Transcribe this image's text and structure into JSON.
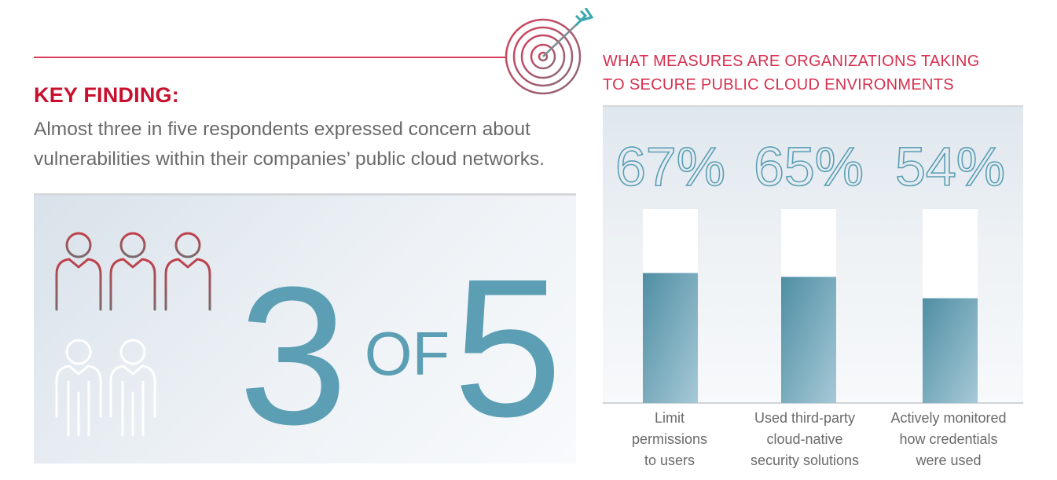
{
  "key_finding": {
    "heading": "KEY FINDING:",
    "text": "Almost three in five respondents expressed concern about vulnerabilities within their companies’ public cloud networks."
  },
  "ratio": {
    "numerator": "3",
    "of_word": "OF",
    "denominator": "5",
    "highlighted": 3,
    "total": 5
  },
  "colors": {
    "accent": "#c8102e",
    "bar": "#5b9bb0",
    "numeral": "#5c9fb5"
  },
  "chart_data": {
    "type": "bar",
    "title": "WHAT MEASURES ARE ORGANIZATIONS TAKING TO SECURE PUBLIC CLOUD ENVIRONMENTS",
    "title_lines": [
      "WHAT MEASURES ARE ORGANIZATIONS TAKING",
      "TO SECURE PUBLIC CLOUD ENVIRONMENTS"
    ],
    "categories": [
      "Limit\npermissions\nto users",
      "Used third-party\ncloud-native\nsecurity solutions",
      "Actively monitored\nhow credentials\nwere used"
    ],
    "values": [
      67,
      65,
      54
    ],
    "value_labels": [
      "67%",
      "65%",
      "54%"
    ],
    "ylim": [
      0,
      100
    ],
    "grid": false,
    "legend": "none"
  }
}
